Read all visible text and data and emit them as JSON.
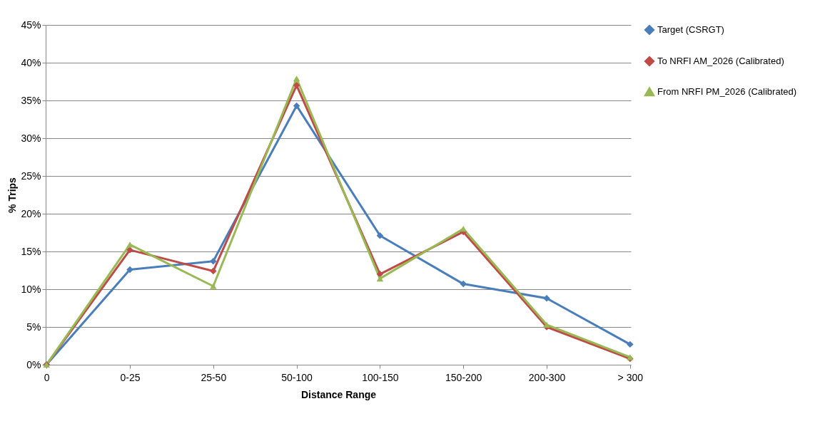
{
  "chart_data": {
    "type": "line",
    "xlabel": "Distance Range",
    "ylabel": "% Trips",
    "categories": [
      "0",
      "0-25",
      "25-50",
      "50-100",
      "100-150",
      "150-200",
      "200-300",
      "> 300"
    ],
    "series": [
      {
        "name": "Target (CSRGT)",
        "color": "#4a7ebb",
        "marker": "diamond",
        "values": [
          0,
          12.6,
          13.7,
          34.3,
          17.1,
          10.7,
          8.8,
          2.7
        ]
      },
      {
        "name": "To NRFI AM_2026 (Calibrated)",
        "color": "#be4b48",
        "marker": "diamond",
        "values": [
          0,
          15.2,
          12.4,
          37.0,
          12.0,
          17.6,
          5.0,
          0.8
        ]
      },
      {
        "name": "From NRFI PM_2026 (Calibrated)",
        "color": "#98b954",
        "marker": "triangle",
        "values": [
          0,
          15.9,
          10.4,
          37.9,
          11.4,
          18.0,
          5.3,
          1.0
        ]
      }
    ],
    "ylim": [
      0,
      45
    ],
    "yticks": [
      {
        "value": 0,
        "label": "0%"
      },
      {
        "value": 5,
        "label": "5%"
      },
      {
        "value": 10,
        "label": "10%"
      },
      {
        "value": 15,
        "label": "15%"
      },
      {
        "value": 20,
        "label": "20%"
      },
      {
        "value": 25,
        "label": "25%"
      },
      {
        "value": 30,
        "label": "30%"
      },
      {
        "value": 35,
        "label": "35%"
      },
      {
        "value": 40,
        "label": "40%"
      },
      {
        "value": 45,
        "label": "45%"
      }
    ],
    "grid": "y",
    "legend": "right",
    "marker": "diamond",
    "line_style": "solid"
  }
}
